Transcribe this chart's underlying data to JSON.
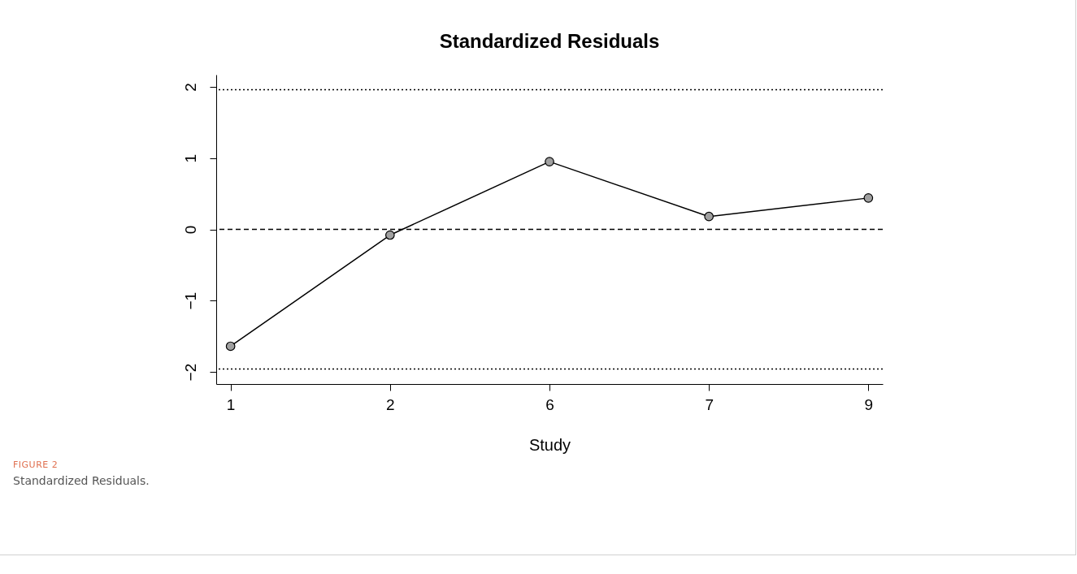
{
  "chart_data": {
    "type": "line",
    "title": "Standardized Residuals",
    "xlabel": "Study",
    "categories": [
      "1",
      "2",
      "6",
      "7",
      "9"
    ],
    "values": [
      -1.64,
      -0.08,
      0.95,
      0.18,
      0.44
    ],
    "color": "#000000",
    "marker": "circle",
    "line_style": "solid",
    "ylim": [
      -2.17,
      2.17
    ],
    "yticks": [
      -2,
      -1,
      0,
      1,
      2
    ],
    "grid": false,
    "ref_lines": [
      {
        "axis": "y",
        "value": 1.96,
        "line_style": "dotted"
      },
      {
        "axis": "y",
        "value": 0,
        "line_style": "dashed"
      },
      {
        "axis": "y",
        "value": -1.96,
        "line_style": "dotted"
      }
    ],
    "annotations": [
      "FIGURE 2",
      "Standardized Residuals."
    ]
  }
}
